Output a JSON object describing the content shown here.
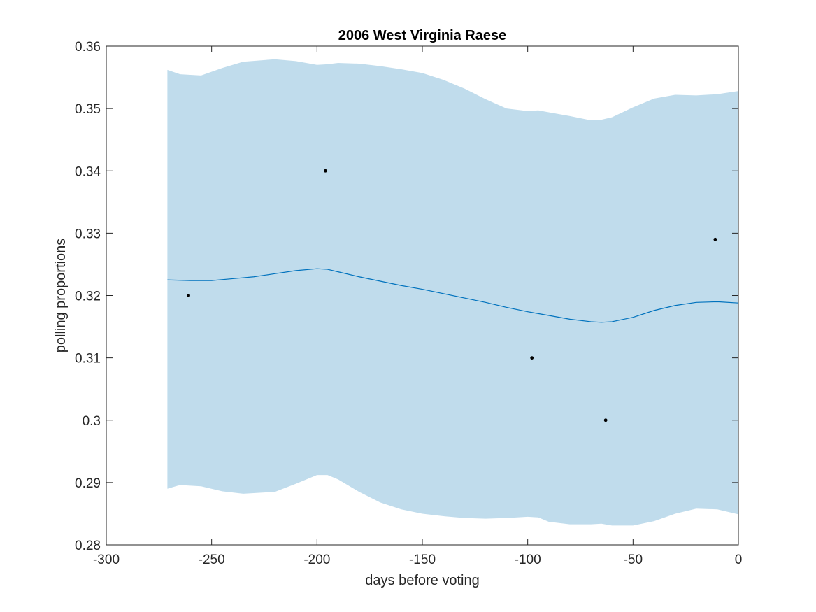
{
  "chart_data": {
    "type": "line",
    "title": "2006 West Virginia Raese",
    "xlabel": "days before voting",
    "ylabel": "polling proportions",
    "xlim": [
      -300,
      0
    ],
    "ylim": [
      0.28,
      0.36
    ],
    "xticks": [
      -300,
      -250,
      -200,
      -150,
      -100,
      -50,
      0
    ],
    "xtick_labels": [
      "-300",
      "-250",
      "-200",
      "-150",
      "-100",
      "-50",
      "0"
    ],
    "yticks": [
      0.28,
      0.29,
      0.3,
      0.31,
      0.32,
      0.33,
      0.34,
      0.35,
      0.36
    ],
    "ytick_labels": [
      "0.28",
      "0.29",
      "0.3",
      "0.31",
      "0.32",
      "0.33",
      "0.34",
      "0.35",
      "0.36"
    ],
    "grid": false,
    "colors": {
      "band": "#c0dcec",
      "line": "#0072bd",
      "points": "#000000",
      "axes": "#262626"
    },
    "series": [
      {
        "kind": "band",
        "x": [
          -271,
          -265,
          -255,
          -245,
          -235,
          -220,
          -210,
          -200,
          -195,
          -190,
          -180,
          -170,
          -160,
          -150,
          -140,
          -130,
          -120,
          -110,
          -100,
          -95,
          -90,
          -80,
          -70,
          -65,
          -60,
          -50,
          -40,
          -30,
          -20,
          -10,
          0
        ],
        "upper": [
          0.3562,
          0.3555,
          0.3553,
          0.3565,
          0.3575,
          0.3579,
          0.3576,
          0.357,
          0.3571,
          0.3573,
          0.3572,
          0.3568,
          0.3563,
          0.3557,
          0.3546,
          0.3532,
          0.3515,
          0.35,
          0.3496,
          0.3497,
          0.3494,
          0.3488,
          0.3481,
          0.3482,
          0.3486,
          0.3502,
          0.3516,
          0.3522,
          0.3521,
          0.3523,
          0.3528
        ],
        "lower": [
          0.289,
          0.2896,
          0.2894,
          0.2886,
          0.2882,
          0.2885,
          0.2898,
          0.2912,
          0.2912,
          0.2905,
          0.2885,
          0.2868,
          0.2857,
          0.285,
          0.2846,
          0.2843,
          0.2842,
          0.2843,
          0.2845,
          0.2844,
          0.2837,
          0.2833,
          0.2833,
          0.2834,
          0.2831,
          0.2831,
          0.2838,
          0.285,
          0.2858,
          0.2857,
          0.2849
        ]
      },
      {
        "kind": "line",
        "x": [
          -271,
          -260,
          -250,
          -240,
          -230,
          -220,
          -210,
          -200,
          -195,
          -190,
          -180,
          -170,
          -160,
          -150,
          -140,
          -130,
          -120,
          -110,
          -100,
          -90,
          -80,
          -70,
          -65,
          -60,
          -50,
          -40,
          -30,
          -20,
          -10,
          0
        ],
        "y": [
          0.3225,
          0.3224,
          0.3224,
          0.3227,
          0.323,
          0.3235,
          0.324,
          0.3243,
          0.3242,
          0.3238,
          0.323,
          0.3223,
          0.3216,
          0.321,
          0.3203,
          0.3196,
          0.3189,
          0.3181,
          0.3174,
          0.3168,
          0.3162,
          0.3158,
          0.3157,
          0.3158,
          0.3165,
          0.3176,
          0.3184,
          0.3189,
          0.319,
          0.3188
        ]
      },
      {
        "kind": "scatter",
        "x": [
          -261,
          -196,
          -98,
          -63,
          -11
        ],
        "y": [
          0.32,
          0.34,
          0.31,
          0.3,
          0.329
        ]
      }
    ]
  }
}
